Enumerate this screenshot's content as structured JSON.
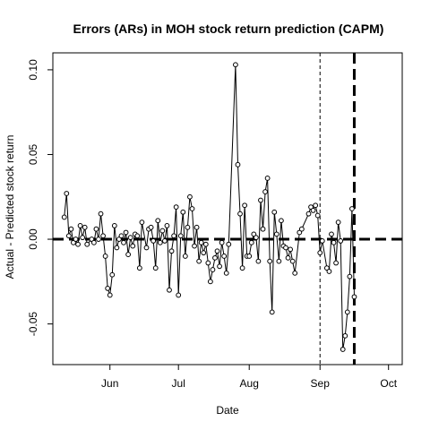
{
  "chart_data": {
    "type": "line",
    "title": "Errors (ARs) in MOH stock return prediction (CAPM)",
    "xlabel": "Date",
    "ylabel": "Actual - Predicted stock return",
    "x_ticks": [
      {
        "date": "2023-06-01",
        "label": "Jun"
      },
      {
        "date": "2023-07-01",
        "label": "Jul"
      },
      {
        "date": "2023-08-01",
        "label": "Aug"
      },
      {
        "date": "2023-09-01",
        "label": "Sep"
      },
      {
        "date": "2023-10-01",
        "label": "Oct"
      }
    ],
    "y_ticks": [
      {
        "value": -0.05,
        "label": "-0.05"
      },
      {
        "value": 0.0,
        "label": "0.00"
      },
      {
        "value": 0.05,
        "label": "0.05"
      },
      {
        "value": 0.1,
        "label": "0.10"
      }
    ],
    "xlim": [
      "2023-05-07",
      "2023-10-07"
    ],
    "ylim": [
      -0.074,
      0.11
    ],
    "zero_line": 0.0,
    "event_lines": [
      {
        "date": "2023-09-01",
        "style": "dashed-thin"
      },
      {
        "date": "2023-09-16",
        "style": "dashed-thick"
      }
    ],
    "series": [
      {
        "marker": "open-circle",
        "points": [
          {
            "x": "2023-05-12",
            "y": 0.013
          },
          {
            "x": "2023-05-13",
            "y": 0.027
          },
          {
            "x": "2023-05-14",
            "y": 0.002
          },
          {
            "x": "2023-05-15",
            "y": 0.006
          },
          {
            "x": "2023-05-16",
            "y": -0.002
          },
          {
            "x": "2023-05-17",
            "y": 0.0
          },
          {
            "x": "2023-05-18",
            "y": -0.003
          },
          {
            "x": "2023-05-19",
            "y": 0.008
          },
          {
            "x": "2023-05-20",
            "y": 0.001
          },
          {
            "x": "2023-05-21",
            "y": 0.007
          },
          {
            "x": "2023-05-22",
            "y": -0.003
          },
          {
            "x": "2023-05-24",
            "y": 0.0
          },
          {
            "x": "2023-05-25",
            "y": -0.002
          },
          {
            "x": "2023-05-26",
            "y": 0.006
          },
          {
            "x": "2023-05-27",
            "y": 0.0
          },
          {
            "x": "2023-05-28",
            "y": 0.015
          },
          {
            "x": "2023-05-29",
            "y": 0.002
          },
          {
            "x": "2023-05-30",
            "y": -0.01
          },
          {
            "x": "2023-05-31",
            "y": -0.029
          },
          {
            "x": "2023-06-01",
            "y": -0.033
          },
          {
            "x": "2023-06-02",
            "y": -0.021
          },
          {
            "x": "2023-06-03",
            "y": 0.008
          },
          {
            "x": "2023-06-04",
            "y": -0.005
          },
          {
            "x": "2023-06-05",
            "y": 0.0
          },
          {
            "x": "2023-06-06",
            "y": 0.002
          },
          {
            "x": "2023-06-07",
            "y": -0.002
          },
          {
            "x": "2023-06-08",
            "y": 0.004
          },
          {
            "x": "2023-06-09",
            "y": -0.009
          },
          {
            "x": "2023-06-10",
            "y": 0.001
          },
          {
            "x": "2023-06-11",
            "y": -0.004
          },
          {
            "x": "2023-06-12",
            "y": 0.003
          },
          {
            "x": "2023-06-13",
            "y": 0.002
          },
          {
            "x": "2023-06-14",
            "y": -0.017
          },
          {
            "x": "2023-06-15",
            "y": 0.01
          },
          {
            "x": "2023-06-17",
            "y": -0.005
          },
          {
            "x": "2023-06-18",
            "y": 0.006
          },
          {
            "x": "2023-06-19",
            "y": 0.007
          },
          {
            "x": "2023-06-20",
            "y": -0.001
          },
          {
            "x": "2023-06-21",
            "y": -0.017
          },
          {
            "x": "2023-06-22",
            "y": 0.011
          },
          {
            "x": "2023-06-23",
            "y": -0.002
          },
          {
            "x": "2023-06-24",
            "y": 0.005
          },
          {
            "x": "2023-06-25",
            "y": -0.001
          },
          {
            "x": "2023-06-26",
            "y": 0.008
          },
          {
            "x": "2023-06-27",
            "y": -0.03
          },
          {
            "x": "2023-06-28",
            "y": -0.007
          },
          {
            "x": "2023-06-29",
            "y": 0.002
          },
          {
            "x": "2023-06-30",
            "y": 0.019
          },
          {
            "x": "2023-07-01",
            "y": -0.033
          },
          {
            "x": "2023-07-02",
            "y": 0.002
          },
          {
            "x": "2023-07-03",
            "y": 0.016
          },
          {
            "x": "2023-07-04",
            "y": -0.01
          },
          {
            "x": "2023-07-05",
            "y": 0.007
          },
          {
            "x": "2023-07-06",
            "y": 0.025
          },
          {
            "x": "2023-07-07",
            "y": 0.018
          },
          {
            "x": "2023-07-08",
            "y": -0.004
          },
          {
            "x": "2023-07-09",
            "y": 0.007
          },
          {
            "x": "2023-07-10",
            "y": -0.013
          },
          {
            "x": "2023-07-11",
            "y": -0.002
          },
          {
            "x": "2023-07-12",
            "y": -0.008
          },
          {
            "x": "2023-07-13",
            "y": -0.003
          },
          {
            "x": "2023-07-14",
            "y": -0.014
          },
          {
            "x": "2023-07-15",
            "y": -0.025
          },
          {
            "x": "2023-07-16",
            "y": -0.018
          },
          {
            "x": "2023-07-17",
            "y": -0.011
          },
          {
            "x": "2023-07-18",
            "y": -0.007
          },
          {
            "x": "2023-07-19",
            "y": -0.016
          },
          {
            "x": "2023-07-20",
            "y": -0.002
          },
          {
            "x": "2023-07-21",
            "y": -0.01
          },
          {
            "x": "2023-07-22",
            "y": -0.02
          },
          {
            "x": "2023-07-23",
            "y": -0.003
          },
          {
            "x": "2023-07-26",
            "y": 0.103
          },
          {
            "x": "2023-07-27",
            "y": 0.044
          },
          {
            "x": "2023-07-28",
            "y": 0.015
          },
          {
            "x": "2023-07-29",
            "y": -0.017
          },
          {
            "x": "2023-07-30",
            "y": 0.02
          },
          {
            "x": "2023-07-31",
            "y": -0.01
          },
          {
            "x": "2023-08-01",
            "y": -0.01
          },
          {
            "x": "2023-08-02",
            "y": -0.002
          },
          {
            "x": "2023-08-03",
            "y": 0.003
          },
          {
            "x": "2023-08-04",
            "y": 0.001
          },
          {
            "x": "2023-08-05",
            "y": -0.013
          },
          {
            "x": "2023-08-06",
            "y": 0.023
          },
          {
            "x": "2023-08-07",
            "y": 0.006
          },
          {
            "x": "2023-08-08",
            "y": 0.028
          },
          {
            "x": "2023-08-09",
            "y": 0.036
          },
          {
            "x": "2023-08-10",
            "y": -0.013
          },
          {
            "x": "2023-08-11",
            "y": -0.043
          },
          {
            "x": "2023-08-12",
            "y": 0.016
          },
          {
            "x": "2023-08-13",
            "y": 0.003
          },
          {
            "x": "2023-08-14",
            "y": -0.013
          },
          {
            "x": "2023-08-15",
            "y": 0.011
          },
          {
            "x": "2023-08-16",
            "y": -0.004
          },
          {
            "x": "2023-08-17",
            "y": -0.005
          },
          {
            "x": "2023-08-18",
            "y": -0.011
          },
          {
            "x": "2023-08-19",
            "y": -0.006
          },
          {
            "x": "2023-08-20",
            "y": -0.013
          },
          {
            "x": "2023-08-21",
            "y": -0.02
          },
          {
            "x": "2023-08-23",
            "y": 0.004
          },
          {
            "x": "2023-08-24",
            "y": 0.006
          },
          {
            "x": "2023-08-27",
            "y": 0.015
          },
          {
            "x": "2023-08-28",
            "y": 0.019
          },
          {
            "x": "2023-08-29",
            "y": 0.017
          },
          {
            "x": "2023-08-30",
            "y": 0.02
          },
          {
            "x": "2023-08-31",
            "y": 0.014
          },
          {
            "x": "2023-09-01",
            "y": -0.008
          },
          {
            "x": "2023-09-02",
            "y": -0.001
          },
          {
            "x": "2023-09-04",
            "y": -0.017
          },
          {
            "x": "2023-09-05",
            "y": -0.019
          },
          {
            "x": "2023-09-06",
            "y": 0.003
          },
          {
            "x": "2023-09-07",
            "y": -0.002
          },
          {
            "x": "2023-09-08",
            "y": -0.014
          },
          {
            "x": "2023-09-09",
            "y": 0.01
          },
          {
            "x": "2023-09-10",
            "y": -0.001
          },
          {
            "x": "2023-09-11",
            "y": -0.065
          },
          {
            "x": "2023-09-12",
            "y": -0.057
          },
          {
            "x": "2023-09-13",
            "y": -0.043
          },
          {
            "x": "2023-09-14",
            "y": -0.022
          },
          {
            "x": "2023-09-15",
            "y": 0.018
          },
          {
            "x": "2023-09-16",
            "y": -0.034
          }
        ]
      }
    ]
  }
}
